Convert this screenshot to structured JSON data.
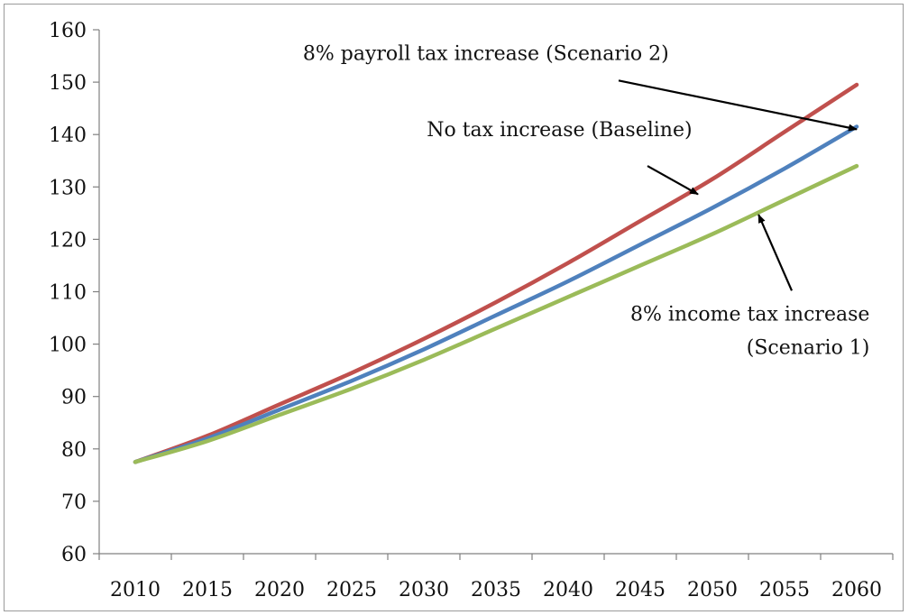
{
  "chart_data": {
    "type": "line",
    "title": "",
    "xlabel": "",
    "ylabel": "",
    "xlim": [
      2007.5,
      2062.5
    ],
    "ylim": [
      60,
      160
    ],
    "x_ticks": [
      2010,
      2015,
      2020,
      2025,
      2030,
      2035,
      2040,
      2045,
      2050,
      2055,
      2060
    ],
    "y_ticks": [
      60,
      70,
      80,
      90,
      100,
      110,
      120,
      130,
      140,
      150,
      160
    ],
    "grid": false,
    "legend": "none",
    "x": [
      2010,
      2015,
      2020,
      2025,
      2030,
      2035,
      2040,
      2045,
      2050,
      2055,
      2060
    ],
    "series": [
      {
        "color": "#c0504d",
        "values": [
          77.5,
          82.5,
          88.5,
          94.5,
          101.0,
          108.0,
          115.5,
          123.5,
          131.5,
          140.5,
          149.5
        ]
      },
      {
        "color": "#4f81bd",
        "values": [
          77.5,
          82.0,
          87.5,
          93.0,
          99.0,
          105.5,
          112.0,
          119.0,
          126.0,
          133.5,
          141.5
        ]
      },
      {
        "color": "#9bbb59",
        "values": [
          77.5,
          81.5,
          86.5,
          91.5,
          97.0,
          103.0,
          109.0,
          115.0,
          121.0,
          127.5,
          134.0
        ]
      }
    ],
    "annotations": [
      {
        "text": "8% payroll tax increase (Scenario 2)",
        "lines": [
          "8% payroll tax increase (Scenario 2)"
        ],
        "text_x": 2034.3,
        "text_y": 154.2,
        "anchor": "middle",
        "arrow_from": [
          2043.5,
          150.3
        ],
        "arrow_to": [
          2060.0,
          141.0
        ]
      },
      {
        "text": "No tax increase (Baseline)",
        "lines": [
          "No tax increase (Baseline)"
        ],
        "text_x": 2039.4,
        "text_y": 139.7,
        "anchor": "middle",
        "arrow_from": [
          2045.5,
          134.0
        ],
        "arrow_to": [
          2049.0,
          128.6
        ]
      },
      {
        "text": "8% income tax increase (Scenario 1)",
        "lines": [
          "8% income tax increase",
          "(Scenario 1)"
        ],
        "text_x": 2060.9,
        "text_y": 104.5,
        "anchor": "end",
        "arrow_from": [
          2055.5,
          110.2
        ],
        "arrow_to": [
          2053.2,
          124.7
        ]
      }
    ]
  }
}
